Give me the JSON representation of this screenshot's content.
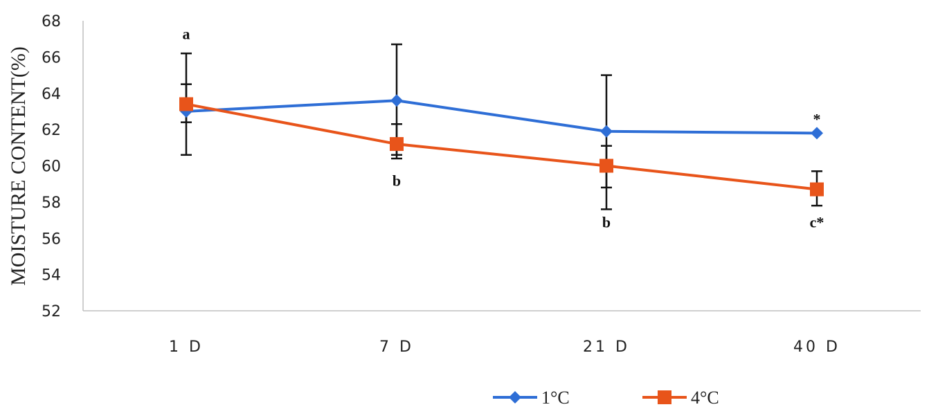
{
  "chart_data": {
    "type": "line",
    "categories": [
      "1  D",
      "7  D",
      "21  D",
      "40  D"
    ],
    "ylabel": "MOISTURE CONTENT(%)",
    "xlabel": "",
    "ylim": [
      52,
      68
    ],
    "yticks": [
      52,
      54,
      56,
      58,
      60,
      62,
      64,
      66,
      68
    ],
    "grid": false,
    "legend_position": "bottom",
    "series": [
      {
        "name": "1°C",
        "color": "#2e6ed6",
        "marker": "diamond",
        "values": [
          63.0,
          63.6,
          61.9,
          61.8
        ],
        "error_upper": [
          66.2,
          66.7,
          65.0,
          61.8
        ],
        "error_lower": [
          60.6,
          60.6,
          58.8,
          61.8
        ]
      },
      {
        "name": "4°C",
        "color": "#e8541a",
        "marker": "square",
        "values": [
          63.4,
          61.2,
          60.0,
          58.7
        ],
        "error_upper": [
          64.5,
          62.3,
          61.1,
          59.7
        ],
        "error_lower": [
          62.4,
          60.4,
          57.6,
          57.8
        ]
      }
    ],
    "annotations": [
      {
        "text": "a",
        "x_index": 0,
        "y": 67.3
      },
      {
        "text": "b",
        "x_index": 1,
        "y": 59.2
      },
      {
        "text": "b",
        "x_index": 2,
        "y": 56.9
      },
      {
        "text": "*",
        "x_index": 3,
        "y": 62.6
      },
      {
        "text": "c*",
        "x_index": 3,
        "y": 56.9
      }
    ]
  }
}
